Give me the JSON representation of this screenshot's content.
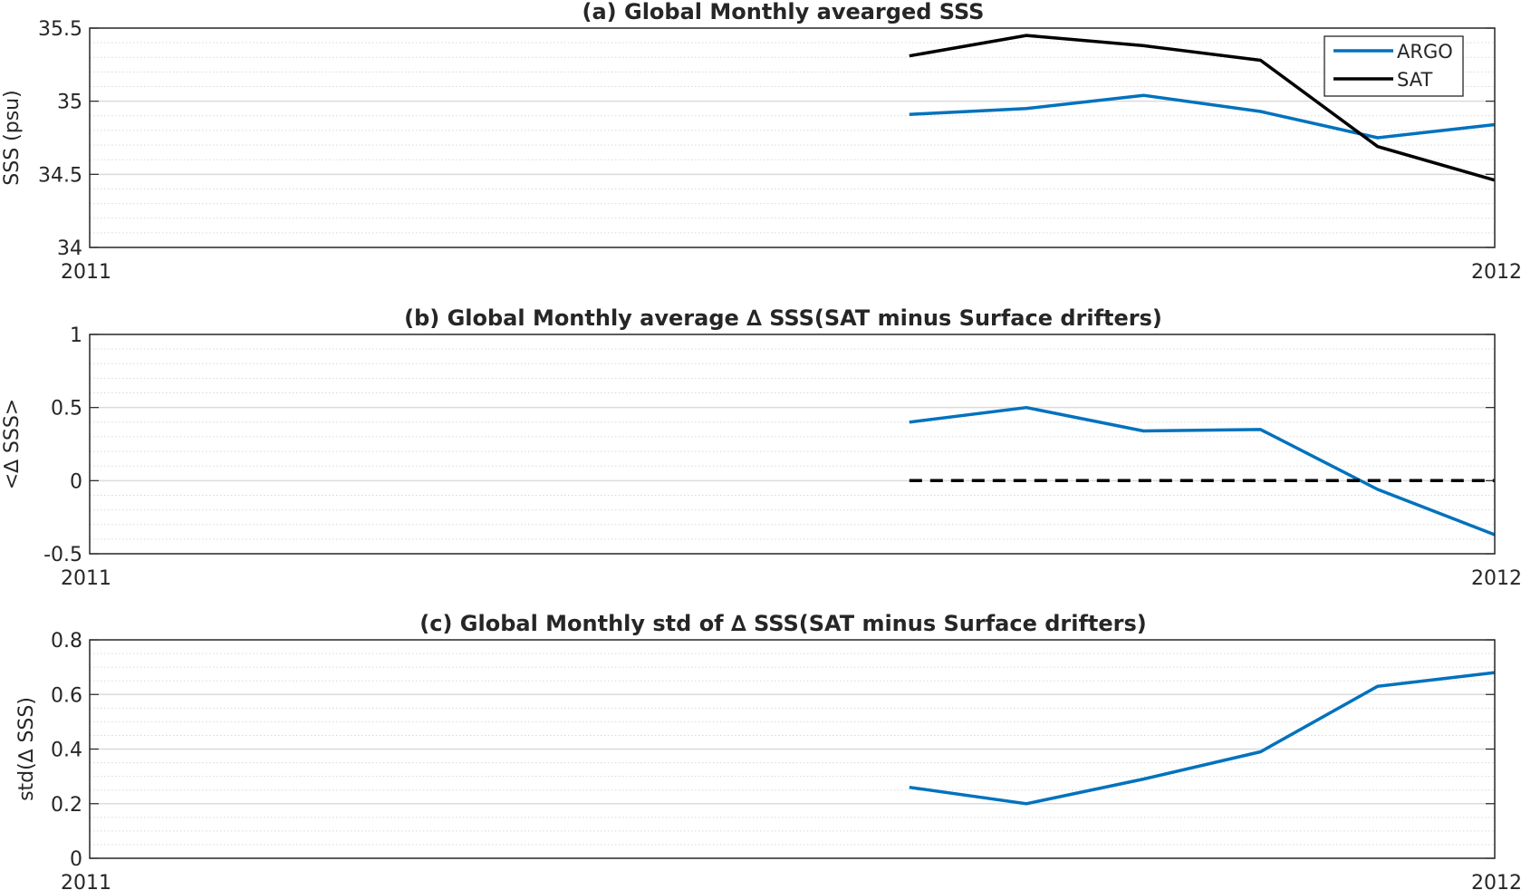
{
  "chart_data": [
    {
      "type": "line",
      "title": "(a) Global Monthly avearged SSS",
      "xlabel": "",
      "ylabel": "SSS (psu)",
      "xlim": [
        0,
        12
      ],
      "x_tick_labels": [
        "2011",
        "2012"
      ],
      "ylim": [
        34,
        35.5
      ],
      "yticks": [
        34,
        34.5,
        35,
        35.5
      ],
      "y_tick_labels": [
        "34",
        "34.5",
        "35",
        "35.5"
      ],
      "minor_grid_step": 0.1,
      "grid": true,
      "legend": {
        "placement": "top-right",
        "entries": [
          "ARGO",
          "SAT"
        ]
      },
      "series": [
        {
          "name": "ARGO",
          "color": "#0072BD",
          "dashed": false,
          "x": [
            7.0,
            8.0,
            9.0,
            10.0,
            11.0,
            12.0
          ],
          "y": [
            34.91,
            34.95,
            35.04,
            34.93,
            34.75,
            34.84
          ]
        },
        {
          "name": "SAT",
          "color": "#000000",
          "dashed": false,
          "x": [
            7.0,
            8.0,
            9.0,
            10.0,
            11.0,
            12.0
          ],
          "y": [
            35.31,
            35.45,
            35.38,
            35.28,
            34.69,
            34.46
          ]
        }
      ]
    },
    {
      "type": "line",
      "title": "(b) Global Monthly average ∆ SSS(SAT minus Surface drifters)",
      "xlabel": "",
      "ylabel": "<∆ SSS>",
      "xlim": [
        0,
        12
      ],
      "x_tick_labels": [
        "2011",
        "2012"
      ],
      "ylim": [
        -0.5,
        1
      ],
      "yticks": [
        -0.5,
        0,
        0.5,
        1
      ],
      "y_tick_labels": [
        "-0.5",
        "0",
        "0.5",
        "1"
      ],
      "minor_grid_step": 0.1,
      "grid": true,
      "series": [
        {
          "color": "#0072BD",
          "dashed": false,
          "x": [
            7.0,
            8.0,
            9.0,
            10.0,
            11.0,
            12.0
          ],
          "y": [
            0.4,
            0.5,
            0.34,
            0.35,
            -0.06,
            -0.37
          ]
        },
        {
          "color": "#000000",
          "dashed": true,
          "x": [
            7.0,
            12.0
          ],
          "y": [
            0,
            0
          ]
        }
      ]
    },
    {
      "type": "line",
      "title": "(c) Global Monthly std of ∆ SSS(SAT minus Surface drifters)",
      "xlabel": "",
      "ylabel": "std(∆ SSS)",
      "xlim": [
        0,
        12
      ],
      "x_tick_labels": [
        "2011",
        "2012"
      ],
      "ylim": [
        0,
        0.8
      ],
      "yticks": [
        0,
        0.2,
        0.4,
        0.6,
        0.8
      ],
      "y_tick_labels": [
        "0",
        "0.2",
        "0.4",
        "0.6",
        "0.8"
      ],
      "minor_grid_step": 0.05,
      "grid": true,
      "series": [
        {
          "color": "#0072BD",
          "dashed": false,
          "x": [
            7.0,
            8.0,
            9.0,
            10.0,
            11.0,
            12.0
          ],
          "y": [
            0.26,
            0.2,
            0.29,
            0.39,
            0.63,
            0.68
          ]
        }
      ]
    }
  ]
}
